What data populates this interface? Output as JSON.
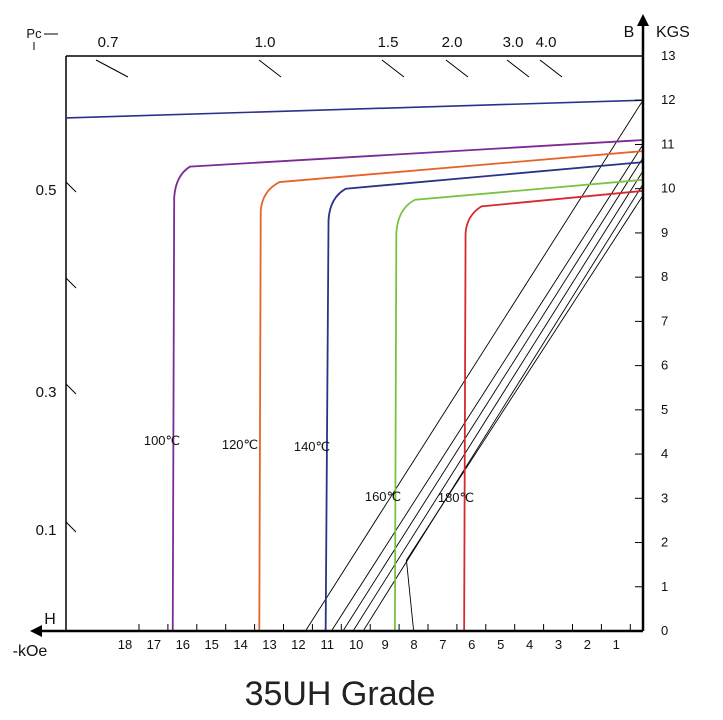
{
  "chart_data": {
    "type": "line",
    "title": "35UH Grade",
    "xlabel": "-kOe",
    "x_axis_marker": "H",
    "ylabel": "KGS",
    "y_axis_marker": "B",
    "pc_label": "Pc",
    "x_ticks": [
      18,
      17,
      16,
      15,
      14,
      13,
      12,
      11,
      10,
      9,
      8,
      7,
      6,
      5,
      4,
      3,
      2,
      1
    ],
    "y_ticks": [
      0,
      1,
      2,
      3,
      4,
      5,
      6,
      7,
      8,
      9,
      10,
      11,
      12,
      13
    ],
    "pc_top": [
      "0.7",
      "1.0",
      "1.5",
      "2.0",
      "3.0",
      "4.0"
    ],
    "pc_left": [
      "0.5",
      "0.3",
      "0.1"
    ],
    "xlim": [
      0,
      20
    ],
    "ylim": [
      0,
      13
    ],
    "series": [
      {
        "name": "100℃",
        "color": "#7d2a96",
        "type": "demag",
        "points": [
          [
            0,
            11.1
          ],
          [
            15.7,
            10.5
          ],
          [
            16.2,
            10.3
          ],
          [
            16.25,
            9.8
          ],
          [
            16.3,
            0
          ]
        ]
      },
      {
        "name": "120℃",
        "color": "#e8632a",
        "type": "demag",
        "points": [
          [
            0,
            10.85
          ],
          [
            12.6,
            10.15
          ],
          [
            13.2,
            9.95
          ],
          [
            13.25,
            9.5
          ],
          [
            13.3,
            0
          ]
        ]
      },
      {
        "name": "140℃",
        "color": "#2a3288",
        "type": "demag",
        "points": [
          [
            0,
            10.6
          ],
          [
            10.3,
            10.0
          ],
          [
            10.85,
            9.8
          ],
          [
            10.9,
            9.3
          ],
          [
            11.0,
            0
          ]
        ]
      },
      {
        "name": "160℃",
        "color": "#7cc242",
        "type": "demag",
        "points": [
          [
            0,
            10.2
          ],
          [
            7.9,
            9.75
          ],
          [
            8.5,
            9.55
          ],
          [
            8.55,
            9.0
          ],
          [
            8.6,
            0
          ]
        ]
      },
      {
        "name": "180℃",
        "color": "#d42a2f",
        "type": "demag",
        "points": [
          [
            0,
            9.95
          ],
          [
            5.6,
            9.6
          ],
          [
            6.1,
            9.4
          ],
          [
            6.15,
            9.0
          ],
          [
            6.2,
            0
          ]
        ]
      }
    ],
    "top_curve": {
      "color": "#2a3288",
      "points": [
        [
          0,
          12.0
        ],
        [
          20,
          11.6
        ]
      ]
    },
    "recoil_lines": [
      {
        "color": "#000000",
        "points": [
          [
            0,
            12.0
          ],
          [
            11.7,
            0
          ]
        ]
      },
      {
        "color": "#000000",
        "points": [
          [
            0,
            11.0
          ],
          [
            10.8,
            0
          ]
        ]
      },
      {
        "color": "#000000",
        "points": [
          [
            0,
            10.7
          ],
          [
            10.4,
            0
          ]
        ]
      },
      {
        "color": "#000000",
        "points": [
          [
            0,
            10.4
          ],
          [
            10.05,
            0
          ]
        ]
      },
      {
        "color": "#000000",
        "points": [
          [
            0,
            10.1
          ],
          [
            9.7,
            0
          ]
        ]
      },
      {
        "color": "#000000",
        "points": [
          [
            0,
            9.85
          ],
          [
            8.2,
            1.6
          ],
          [
            7.95,
            0
          ]
        ]
      }
    ]
  }
}
